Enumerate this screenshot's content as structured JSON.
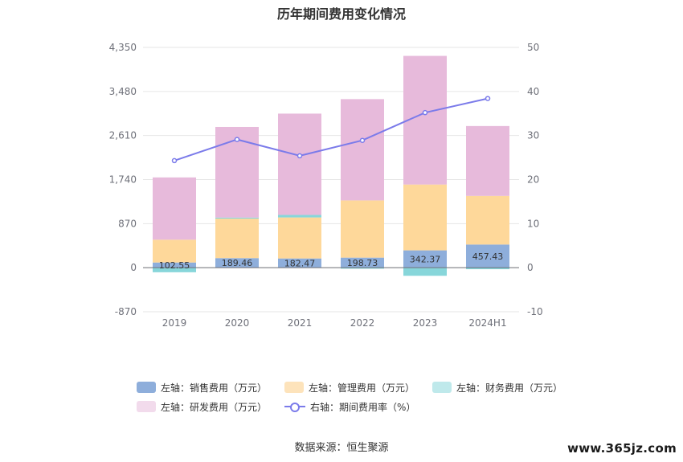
{
  "chart_data": {
    "type": "bar",
    "title": "历年期间费用变化情况",
    "categories": [
      "2019",
      "2020",
      "2021",
      "2022",
      "2023",
      "2024H1"
    ],
    "stacked": true,
    "left_axis": {
      "ticks": [
        "4,350",
        "3,480",
        "2,610",
        "1,740",
        "870",
        "0",
        "-870"
      ],
      "ylim": [
        -870,
        4350
      ]
    },
    "right_axis": {
      "ticks": [
        "50",
        "40",
        "30",
        "20",
        "10",
        "0",
        "-10"
      ],
      "ylim": [
        -10,
        50
      ]
    },
    "series": [
      {
        "name": "左轴：销售费用（万元）",
        "axis": "left",
        "color": "#8eaedb",
        "values": [
          102.55,
          189.46,
          182.47,
          198.73,
          342.37,
          457.43
        ],
        "labels": [
          "102.55",
          "189.46",
          "182.47",
          "198.73",
          "342.37",
          "457.43"
        ]
      },
      {
        "name": "左轴：管理费用（万元）",
        "axis": "left",
        "color": "#fed89a",
        "values": [
          450,
          780,
          810,
          1130,
          1300,
          960
        ]
      },
      {
        "name": "左轴：财务费用（万元）",
        "axis": "left",
        "color": "#87d6da",
        "values": [
          -90,
          20,
          50,
          -20,
          -160,
          -30
        ]
      },
      {
        "name": "左轴：研发费用（万元）",
        "axis": "left",
        "color": "#e7badb",
        "values": [
          1230,
          1790,
          2000,
          2000,
          2540,
          1380
        ]
      },
      {
        "name": "右轴：期间费用率（%）",
        "axis": "right",
        "type": "line",
        "color": "#7b7bea",
        "values": [
          24.3,
          29.1,
          25.4,
          28.9,
          35.2,
          38.4
        ]
      }
    ],
    "grid": true,
    "legend_position": "bottom"
  },
  "legend": {
    "items": [
      {
        "label": "左轴：销售费用（万元）",
        "color": "#8eaedb"
      },
      {
        "label": "左轴：管理费用（万元）",
        "color": "#fed89a"
      },
      {
        "label": "左轴：财务费用（万元）",
        "color": "#87d6da"
      },
      {
        "label": "左轴：研发费用（万元）",
        "color": "#e7badb"
      },
      {
        "label": "右轴：期间费用率（%）",
        "color": "#7b7bea"
      }
    ]
  },
  "source": "数据来源：恒生聚源",
  "watermark": "www.365jz.com"
}
